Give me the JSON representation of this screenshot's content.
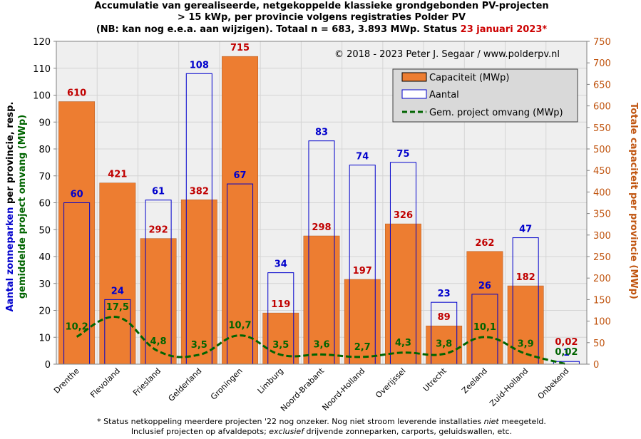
{
  "title": {
    "line1": "Accumulatie van gerealiseerde, netgekoppelde klassieke grondgebonden  PV-projecten",
    "line2": "> 15 kWp, per provincie volgens registraties Polder PV",
    "line3": "(NB: kan nog e.e.a. aan wijzigen). Totaal n = 683, 3.893 MWp. Status ",
    "line3_date": "23 januari 2023*"
  },
  "copyright": "© 2018  - 2023 Peter J. Segaar / www.polderpv.nl",
  "footnote": {
    "line1_a": "* Status netkoppeling meerdere projecten '22 nog onzeker. Nog niet stroom leverende installaties ",
    "line1_b": "niet",
    "line1_c": " meegeteld.",
    "line2_a": "Inclusief projecten op afvaldepots; ",
    "line2_b": "exclusief",
    "line2_c": " drijvende zonneparken, carports, geluidswallen, etc."
  },
  "colors": {
    "capacity_fill": "#ed7d31",
    "capacity_label": "#c00000",
    "count_stroke": "#0000cc",
    "avg_line": "#006400",
    "plot_bg": "#efefef",
    "grid": "#d4d4d4",
    "right_axis": "#c0540f",
    "title_date": "#cc0000"
  },
  "chart_data": {
    "type": "bar",
    "categories": [
      "Drenthe",
      "Flevoland",
      "Friesland",
      "Gelderland",
      "Groningen",
      "Limburg",
      "Noord-Brabant",
      "Noord-Holland",
      "Overijssel",
      "Utrecht",
      "Zeeland",
      "Zuid-Holland",
      "Onbekend"
    ],
    "series": [
      {
        "name": "Capaciteit (MWp)",
        "axis": "right",
        "values": [
          610,
          421,
          292,
          382,
          715,
          119,
          298,
          197,
          326,
          89,
          262,
          182,
          0.02
        ],
        "labels": [
          "610",
          "421",
          "292",
          "382",
          "715",
          "119",
          "298",
          "197",
          "326",
          "89",
          "262",
          "182",
          "0,02"
        ]
      },
      {
        "name": "Aantal",
        "axis": "left",
        "values": [
          60,
          24,
          61,
          108,
          67,
          34,
          83,
          74,
          75,
          23,
          26,
          47,
          1
        ],
        "labels": [
          "60",
          "24",
          "61",
          "108",
          "67",
          "34",
          "83",
          "74",
          "75",
          "23",
          "26",
          "47",
          "1"
        ]
      },
      {
        "name": "Gem. project omvang (MWp)",
        "axis": "left",
        "type": "line",
        "values": [
          10.2,
          17.5,
          4.8,
          3.5,
          10.7,
          3.5,
          3.6,
          2.7,
          4.3,
          3.8,
          10.1,
          3.9,
          0.02
        ],
        "labels": [
          "10,2",
          "17,5",
          "4,8",
          "3,5",
          "10,7",
          "3,5",
          "3,6",
          "2,7",
          "4,3",
          "3,8",
          "10,1",
          "3,9",
          "0,02"
        ]
      }
    ],
    "y_left": {
      "ylim": [
        0,
        120
      ],
      "ticks": [
        "0",
        "10",
        "20",
        "30",
        "40",
        "50",
        "60",
        "70",
        "80",
        "90",
        "100",
        "110",
        "120"
      ],
      "label_part1": "Aantal zonneparken",
      "label_part2": " per provincie, resp.",
      "label_line2": "gemiddelde project omvang (MWp)"
    },
    "y_right": {
      "ylim": [
        0,
        750
      ],
      "ticks": [
        "0",
        "50",
        "100",
        "150",
        "200",
        "250",
        "300",
        "350",
        "400",
        "450",
        "500",
        "550",
        "600",
        "650",
        "700",
        "750"
      ],
      "label": "Totale capaciteit per provincie (MWp)"
    },
    "grid": true,
    "legend_position": "top-right"
  }
}
